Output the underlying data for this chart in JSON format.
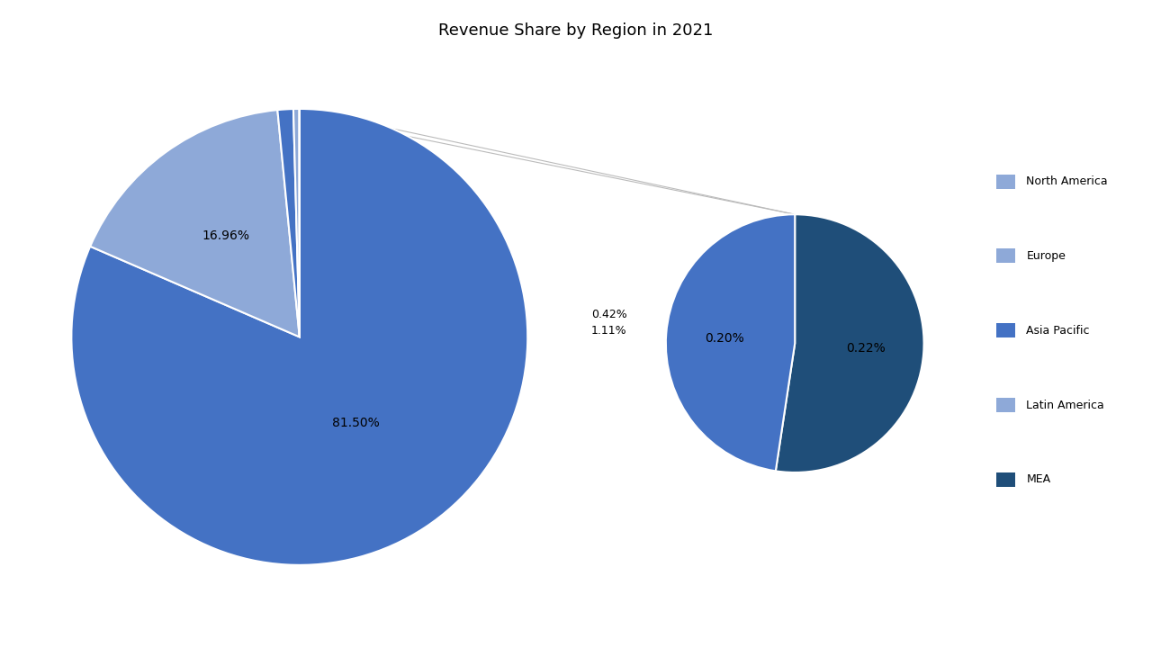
{
  "title": "Revenue Share by Region in 2021",
  "title_fontsize": 13,
  "main_values": [
    81.5,
    16.96,
    1.11,
    0.42,
    0.01
  ],
  "main_colors": [
    "#4472C4",
    "#8EA9D8",
    "#4472C4",
    "#8EA9D8",
    "#4472C4"
  ],
  "secondary_values": [
    0.22,
    0.2
  ],
  "secondary_colors": [
    "#1F4E79",
    "#4472C4"
  ],
  "legend_labels": [
    "North America",
    "Europe",
    "Asia Pacific",
    "Latin America",
    "MEA"
  ],
  "legend_colors": [
    "#8EA9D8",
    "#8EA9D8",
    "#4472C4",
    "#8EA9D8",
    "#1F4E79"
  ],
  "background_color": "#FFFFFF",
  "label_fontsize": 10,
  "wedge_edgecolor": "white",
  "wedge_linewidth": 1.5,
  "connection_color": "#BBBBBB"
}
